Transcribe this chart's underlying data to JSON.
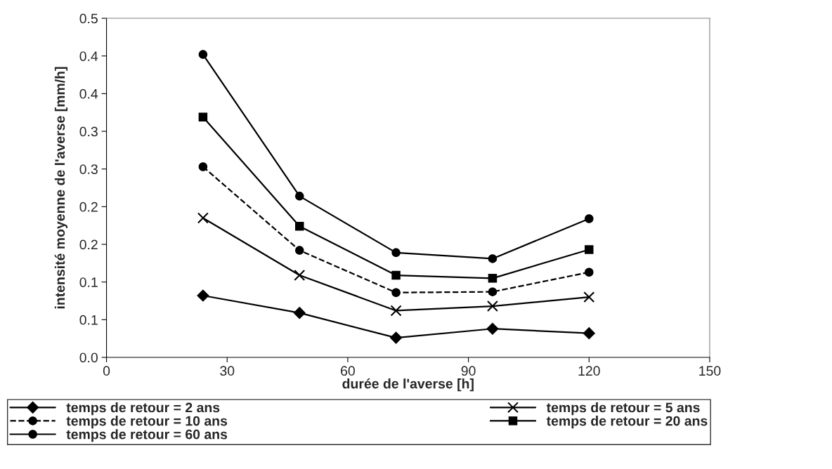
{
  "chart_data": {
    "type": "line",
    "x": [
      24,
      48,
      72,
      96,
      120
    ],
    "xlabel": "durée de l'averse [h]",
    "ylabel": "intensité moyenne de l'averse [mm/h]",
    "xlim": [
      0,
      150
    ],
    "xticks": [
      0,
      30,
      60,
      90,
      120,
      150
    ],
    "ylim": [
      0,
      0.45
    ],
    "yticks": [
      {
        "value": 0,
        "label": "0.0"
      },
      {
        "value": 0.05,
        "label": "0.1"
      },
      {
        "value": 0.1,
        "label": "0.1"
      },
      {
        "value": 0.15,
        "label": "0.2"
      },
      {
        "value": 0.2,
        "label": "0.2"
      },
      {
        "value": 0.25,
        "label": "0.3"
      },
      {
        "value": 0.3,
        "label": "0.3"
      },
      {
        "value": 0.35,
        "label": "0.4"
      },
      {
        "value": 0.4,
        "label": "0.4"
      },
      {
        "value": 0.45,
        "label": "0.5"
      }
    ],
    "grid": false,
    "legend": "bottom",
    "series": [
      {
        "name": "temps de retour = 2 ans",
        "color": "#000000",
        "marker": "diamond",
        "line_style": "solid",
        "values": [
          0.082,
          0.059,
          0.026,
          0.038,
          0.032
        ]
      },
      {
        "name": "temps de retour = 5 ans",
        "color": "#000000",
        "marker": "cross",
        "line_style": "solid",
        "values": [
          0.185,
          0.109,
          0.062,
          0.068,
          0.08
        ]
      },
      {
        "name": "temps de retour = 10 ans",
        "color": "#000000",
        "marker": "circle",
        "line_style": "dashed",
        "values": [
          0.253,
          0.142,
          0.086,
          0.087,
          0.113
        ]
      },
      {
        "name": "temps de retour = 20 ans",
        "color": "#000000",
        "marker": "square",
        "line_style": "solid",
        "values": [
          0.319,
          0.174,
          0.109,
          0.105,
          0.143
        ]
      },
      {
        "name": "temps de retour = 60 ans",
        "color": "#000000",
        "marker": "circle",
        "line_style": "solid",
        "values": [
          0.402,
          0.214,
          0.139,
          0.131,
          0.184
        ]
      }
    ]
  }
}
